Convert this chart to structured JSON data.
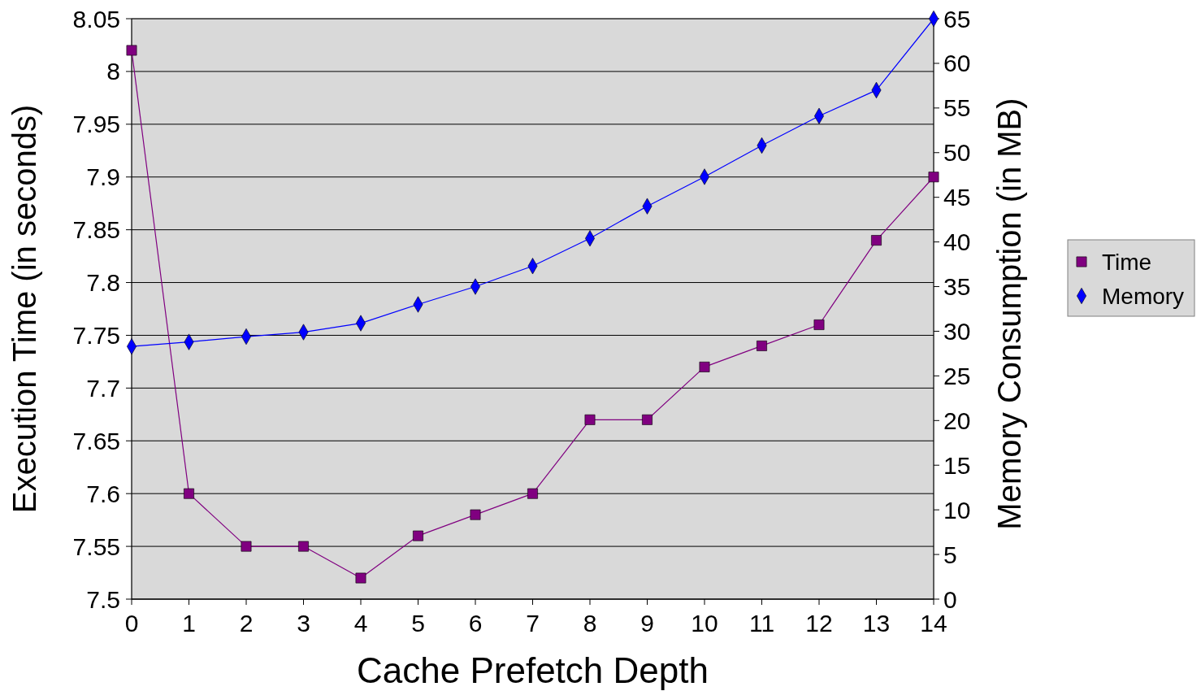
{
  "chart_data": {
    "type": "line",
    "xlabel": "Cache Prefetch Depth",
    "ylabel": "Execution Time (in seconds)",
    "y2label": "Memory Consumption (in MB)",
    "x": [
      0,
      1,
      2,
      3,
      4,
      5,
      6,
      7,
      8,
      9,
      10,
      11,
      12,
      13,
      14
    ],
    "xlim": [
      0,
      14
    ],
    "xticks": [
      0,
      1,
      2,
      3,
      4,
      5,
      6,
      7,
      8,
      9,
      10,
      11,
      12,
      13,
      14
    ],
    "ylim": [
      7.5,
      8.05
    ],
    "yticks": [
      7.5,
      7.55,
      7.6,
      7.65,
      7.7,
      7.75,
      7.8,
      7.85,
      7.9,
      7.95,
      8,
      8.05
    ],
    "y2lim": [
      0,
      65
    ],
    "y2ticks": [
      0,
      5,
      10,
      15,
      20,
      25,
      30,
      35,
      40,
      45,
      50,
      55,
      60,
      65
    ],
    "series": [
      {
        "name": "Time",
        "color": "#800080",
        "marker": "square",
        "values": [
          8.02,
          7.6,
          7.55,
          7.55,
          7.52,
          7.56,
          7.58,
          7.6,
          7.67,
          7.67,
          7.72,
          7.74,
          7.76,
          7.84,
          7.9
        ]
      },
      {
        "name": "Memory",
        "color": "#0000ff",
        "marker": "diamond",
        "axis": "y2",
        "values": [
          28.3,
          28.8,
          29.4,
          29.9,
          30.9,
          33.0,
          35.0,
          37.3,
          40.4,
          44.0,
          47.3,
          50.8,
          54.1,
          57.0,
          65
        ]
      }
    ],
    "grid": "y",
    "legend": "right",
    "line_style": "solid"
  }
}
